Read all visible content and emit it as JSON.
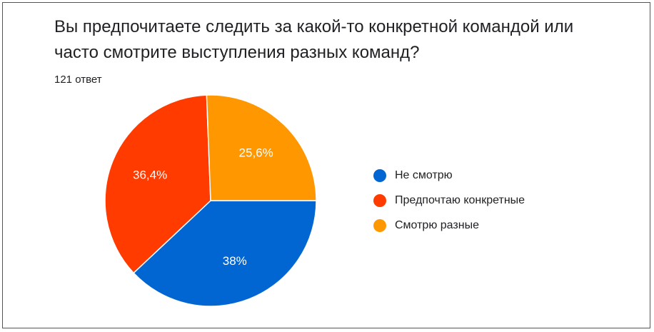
{
  "title": "Вы предпочитаете следить за какой-то конкретной командой или часто смотрите  выступления разных команд?",
  "subtitle": "121 ответ",
  "chart_data": {
    "type": "pie",
    "title": "Вы предпочитаете следить за какой-то конкретной командой или часто смотрите  выступления разных команд?",
    "subtitle": "121 ответ",
    "total_responses": 121,
    "slices": [
      {
        "label": "Не смотрю",
        "value": 38.0,
        "display": "38%",
        "color": "#0266D2"
      },
      {
        "label": "Предпочтаю конкретные",
        "value": 36.4,
        "display": "36,4%",
        "color": "#FF3B00"
      },
      {
        "label": "Смотрю разные",
        "value": 25.6,
        "display": "25,6%",
        "color": "#FF9800"
      }
    ],
    "legend_position": "right"
  }
}
